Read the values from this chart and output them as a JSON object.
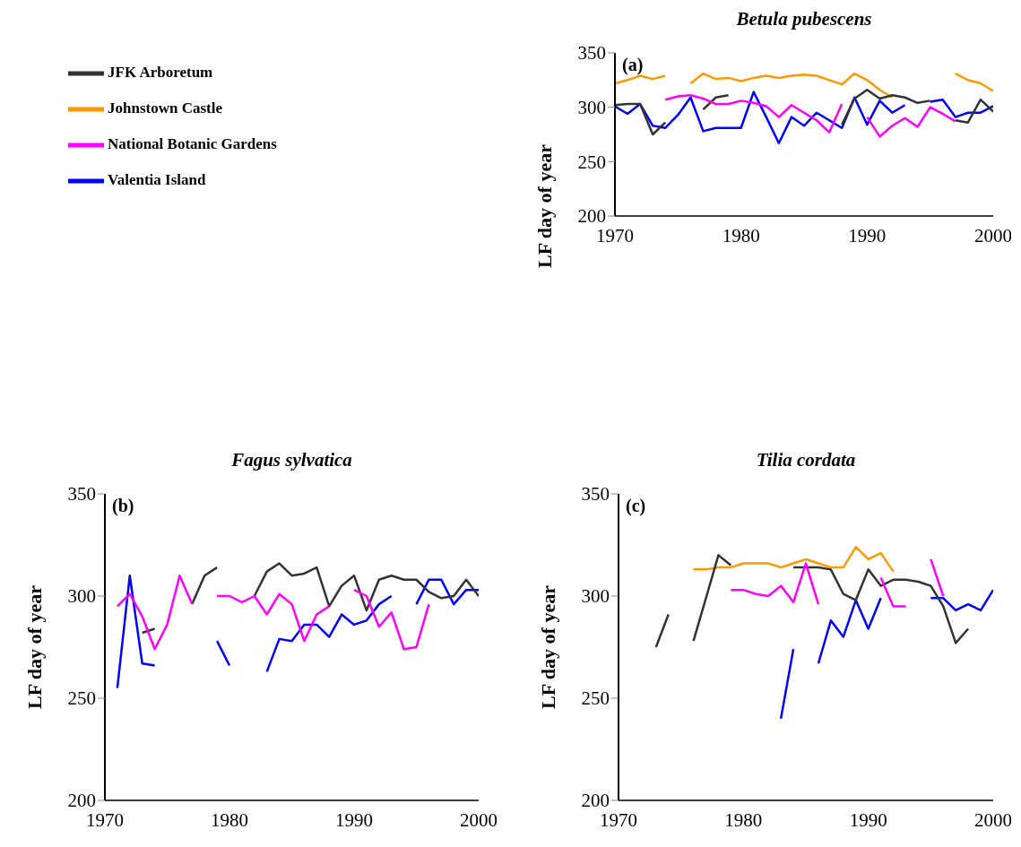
{
  "chart_data": [
    {
      "type": "line",
      "title": "Betula pubescens",
      "ylabel": "LF day of year",
      "annotations": [
        "(a)"
      ],
      "xlim": [
        1970,
        2000
      ],
      "xticks": [
        1970,
        1980,
        1990,
        2000
      ],
      "ylim": [
        200,
        350
      ],
      "yticks": [
        200,
        250,
        300,
        350
      ],
      "grid": false,
      "legend": "left",
      "marker": "none",
      "line_style": "solid",
      "x": [
        1970,
        1971,
        1972,
        1973,
        1974,
        1975,
        1976,
        1977,
        1978,
        1979,
        1980,
        1981,
        1982,
        1983,
        1984,
        1985,
        1986,
        1987,
        1988,
        1989,
        1990,
        1991,
        1992,
        1993,
        1994,
        1995,
        1996,
        1997,
        1998,
        1999,
        2000
      ],
      "series": [
        {
          "name": "Valentia Island",
          "color": "#0000ff",
          "values": [
            301,
            294,
            303,
            283,
            281,
            293,
            309,
            278,
            281,
            281,
            281,
            314,
            291,
            267,
            291,
            283,
            295,
            288,
            281,
            309,
            284,
            306,
            295,
            302,
            null,
            305,
            307,
            291,
            295,
            295,
            301
          ]
        },
        {
          "name": "Johnstown Castle",
          "color": "#ff9900",
          "values": [
            322,
            325,
            329,
            326,
            329,
            null,
            322,
            331,
            326,
            327,
            324,
            327,
            329,
            327,
            329,
            330,
            329,
            325,
            321,
            331,
            325,
            316,
            309,
            null,
            null,
            null,
            null,
            331,
            325,
            322,
            315
          ]
        },
        {
          "name": "JFK Arboretum",
          "color": "#333333",
          "values": [
            302,
            303,
            303,
            275,
            286,
            null,
            null,
            298,
            309,
            311,
            null,
            null,
            null,
            null,
            null,
            null,
            null,
            null,
            284,
            308,
            316,
            308,
            311,
            309,
            304,
            306,
            null,
            288,
            286,
            307,
            296
          ]
        },
        {
          "name": "National Botanic Gardens",
          "color": "#ff00ff",
          "values": [
            null,
            null,
            null,
            null,
            307,
            310,
            311,
            308,
            303,
            303,
            306,
            304,
            301,
            291,
            302,
            295,
            288,
            277,
            303,
            null,
            291,
            273,
            283,
            290,
            282,
            300,
            294,
            287,
            null,
            null,
            null
          ]
        }
      ]
    },
    {
      "type": "line",
      "title": "Fagus sylvatica",
      "ylabel": "LF day of year",
      "annotations": [
        "(b)"
      ],
      "xlim": [
        1970,
        2000
      ],
      "xticks": [
        1970,
        1980,
        1990,
        2000
      ],
      "ylim": [
        200,
        350
      ],
      "yticks": [
        200,
        250,
        300,
        350
      ],
      "grid": false,
      "marker": "none",
      "line_style": "solid",
      "x": [
        1971,
        1972,
        1973,
        1974,
        1975,
        1976,
        1977,
        1978,
        1979,
        1980,
        1981,
        1982,
        1983,
        1984,
        1985,
        1986,
        1987,
        1988,
        1989,
        1990,
        1991,
        1992,
        1993,
        1994,
        1995,
        1996,
        1997,
        1998,
        1999,
        2000
      ],
      "series": [
        {
          "color": "#0000ff",
          "values": [
            255,
            310,
            267,
            266,
            null,
            null,
            null,
            null,
            278,
            266,
            null,
            null,
            263,
            279,
            278,
            286,
            286,
            280,
            291,
            286,
            288,
            296,
            300,
            null,
            296,
            308,
            308,
            296,
            303,
            303
          ]
        },
        {
          "color": "#333333",
          "values": [
            null,
            null,
            282,
            284,
            null,
            null,
            296,
            310,
            314,
            null,
            null,
            300,
            312,
            316,
            310,
            311,
            314,
            295,
            305,
            310,
            293,
            308,
            310,
            308,
            308,
            302,
            299,
            300,
            308,
            300
          ]
        },
        {
          "color": "#ff00ff",
          "values": [
            295,
            301,
            290,
            274,
            286,
            310,
            296,
            null,
            300,
            300,
            297,
            300,
            291,
            301,
            296,
            278,
            291,
            295,
            null,
            303,
            300,
            285,
            292,
            274,
            275,
            296,
            null,
            null,
            null,
            null
          ]
        }
      ]
    },
    {
      "type": "line",
      "title": "Tilia cordata",
      "ylabel": "LF day of year",
      "annotations": [
        "(c)"
      ],
      "xlim": [
        1970,
        2000
      ],
      "xticks": [
        1970,
        1980,
        1990,
        2000
      ],
      "ylim": [
        200,
        350
      ],
      "yticks": [
        200,
        250,
        300,
        350
      ],
      "grid": false,
      "marker": "none",
      "line_style": "solid",
      "x": [
        1973,
        1974,
        1975,
        1976,
        1977,
        1978,
        1979,
        1980,
        1981,
        1982,
        1983,
        1984,
        1985,
        1986,
        1987,
        1988,
        1989,
        1990,
        1991,
        1992,
        1993,
        1994,
        1995,
        1996,
        1997,
        1998,
        1999,
        2000
      ],
      "series": [
        {
          "color": "#0000ff",
          "values": [
            null,
            null,
            null,
            null,
            null,
            null,
            null,
            null,
            null,
            null,
            240,
            274,
            null,
            267,
            288,
            280,
            298,
            284,
            299,
            null,
            null,
            null,
            299,
            299,
            293,
            296,
            293,
            303
          ]
        },
        {
          "color": "#ff9900",
          "values": [
            null,
            null,
            null,
            313,
            313,
            314,
            314,
            316,
            316,
            316,
            314,
            316,
            318,
            316,
            314,
            314,
            324,
            318,
            321,
            312,
            null,
            null,
            null,
            null,
            null,
            null,
            null,
            null
          ]
        },
        {
          "color": "#333333",
          "values": [
            275,
            291,
            null,
            278,
            299,
            320,
            315,
            null,
            null,
            null,
            null,
            314,
            314,
            314,
            313,
            301,
            298,
            313,
            305,
            308,
            308,
            307,
            305,
            295,
            277,
            284,
            null,
            null
          ]
        },
        {
          "color": "#ff00ff",
          "values": [
            null,
            null,
            null,
            null,
            null,
            null,
            303,
            303,
            301,
            300,
            305,
            297,
            316,
            296,
            null,
            null,
            null,
            null,
            309,
            295,
            295,
            null,
            318,
            300,
            null,
            null,
            null,
            null
          ]
        }
      ]
    }
  ]
}
